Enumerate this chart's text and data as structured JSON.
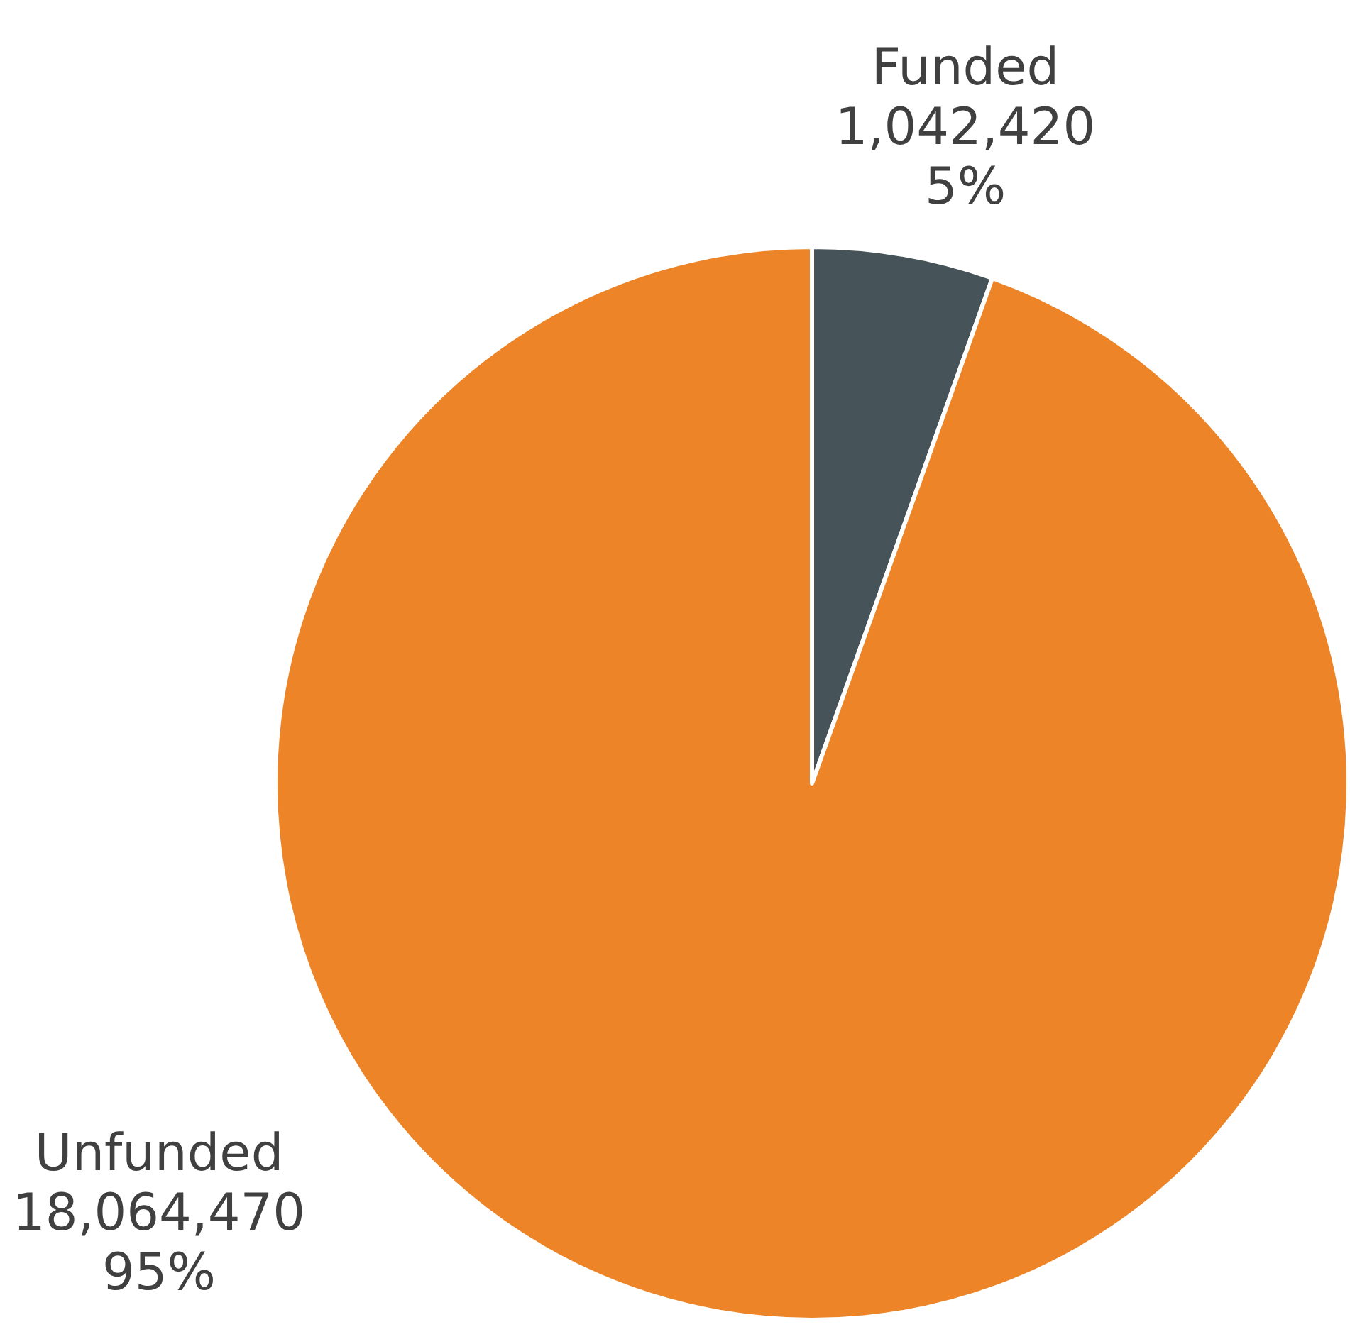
{
  "chart_data": {
    "type": "pie",
    "categories": [
      "Funded",
      "Unfunded"
    ],
    "values": [
      1042420,
      18064470
    ],
    "colors": [
      "#465358",
      "#ed8528"
    ],
    "value_labels": [
      "1,042,420\n5%",
      "18,064,470\n95%"
    ],
    "legend": false
  }
}
